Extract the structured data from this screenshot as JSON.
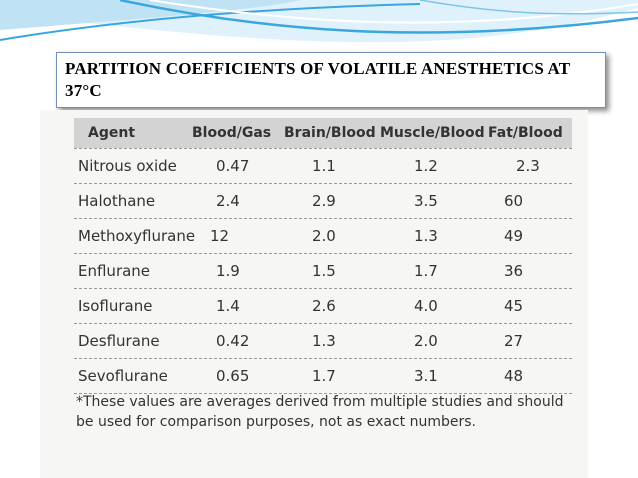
{
  "slide": {
    "title": "PARTITION COEFFICIENTS OF VOLATILE ANESTHETICS AT 37°C"
  },
  "table": {
    "headers": [
      "Agent",
      "Blood/Gas",
      "Brain/Blood",
      "Muscle/Blood",
      "Fat/Blood"
    ],
    "rows": [
      [
        "Nitrous oxide",
        "0.47",
        "1.1",
        "1.2",
        "2.3"
      ],
      [
        "Halothane",
        "2.4",
        "2.9",
        "3.5",
        "60"
      ],
      [
        "Methoxyflurane",
        "12",
        "2.0",
        "1.3",
        "49"
      ],
      [
        "Enflurane",
        "1.9",
        "1.5",
        "1.7",
        "36"
      ],
      [
        "Isoflurane",
        "1.4",
        "2.6",
        "4.0",
        "45"
      ],
      [
        "Desflurane",
        "0.42",
        "1.3",
        "2.0",
        "27"
      ],
      [
        "Sevoflurane",
        "0.65",
        "1.7",
        "3.1",
        "48"
      ]
    ],
    "footnote": "*These values are averages derived from multiple studies and should be used for comparison purposes, not as exact numbers."
  },
  "colors": {
    "wave_blue": "#3aa6dd",
    "wave_light": "#bfe3f4",
    "header_gray": "#d3d3d3"
  }
}
